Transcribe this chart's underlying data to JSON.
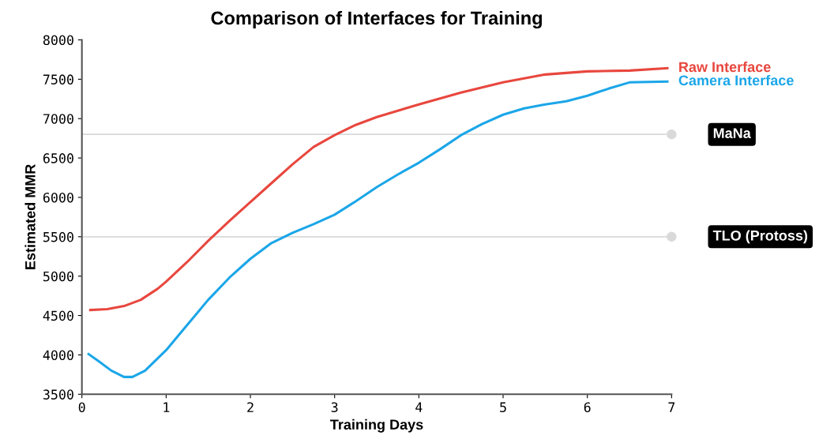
{
  "chart_data": {
    "type": "line",
    "title": "Comparison of Interfaces for Training",
    "xlabel": "Training Days",
    "ylabel": "Estimated MMR",
    "xlim": [
      0,
      7
    ],
    "xticks": [
      0,
      1,
      2,
      3,
      4,
      5,
      6,
      7
    ],
    "ylim": [
      3500,
      8000
    ],
    "yticks": [
      3500,
      4000,
      4500,
      5000,
      5500,
      6000,
      6500,
      7000,
      7500,
      8000
    ],
    "grid": false,
    "legend": false,
    "marker": "none",
    "line_style": "solid",
    "series": [
      {
        "name": "Raw Interface",
        "color": "#e8473e",
        "x": [
          0.1,
          0.3,
          0.5,
          0.7,
          0.9,
          1.0,
          1.25,
          1.5,
          1.75,
          2.0,
          2.25,
          2.5,
          2.75,
          3.0,
          3.25,
          3.5,
          3.75,
          4.0,
          4.5,
          5.0,
          5.5,
          6.0,
          6.5,
          6.95
        ],
        "values": [
          4570,
          4580,
          4620,
          4700,
          4840,
          4930,
          5180,
          5450,
          5700,
          5940,
          6180,
          6420,
          6640,
          6790,
          6920,
          7020,
          7100,
          7180,
          7330,
          7460,
          7560,
          7600,
          7610,
          7640
        ]
      },
      {
        "name": "Camera Interface",
        "color": "#1ba6e8",
        "x": [
          0.08,
          0.2,
          0.35,
          0.5,
          0.6,
          0.75,
          1.0,
          1.25,
          1.5,
          1.75,
          2.0,
          2.25,
          2.5,
          2.75,
          3.0,
          3.25,
          3.5,
          3.75,
          4.0,
          4.25,
          4.5,
          4.75,
          5.0,
          5.25,
          5.5,
          5.75,
          6.0,
          6.25,
          6.5,
          6.95
        ],
        "values": [
          4010,
          3920,
          3800,
          3720,
          3720,
          3800,
          4060,
          4380,
          4700,
          4980,
          5220,
          5420,
          5550,
          5660,
          5780,
          5950,
          6130,
          6290,
          6440,
          6610,
          6790,
          6930,
          7050,
          7130,
          7180,
          7220,
          7290,
          7380,
          7460,
          7470
        ]
      }
    ],
    "ref_lines": [
      {
        "axis": "y",
        "value": 6800,
        "label": "MaNa",
        "color": "#d9d9d9"
      },
      {
        "axis": "y",
        "value": 5500,
        "label": "TLO (Protoss)",
        "color": "#d9d9d9"
      }
    ]
  }
}
